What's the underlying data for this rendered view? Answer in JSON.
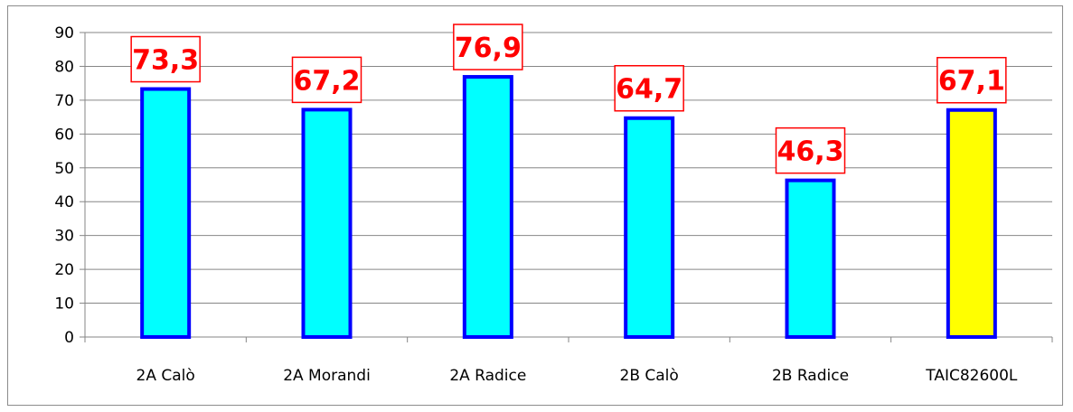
{
  "chart_data": {
    "type": "bar",
    "title": "",
    "xlabel": "",
    "ylabel": "",
    "categories": [
      "2A Calò",
      "2A Morandi",
      "2A Radice",
      "2B Calò",
      "2B Radice",
      "TAIC82600L"
    ],
    "values": [
      73.3,
      67.2,
      76.9,
      64.7,
      46.3,
      67.1
    ],
    "data_labels": [
      "73,3",
      "67,2",
      "76,9",
      "64,7",
      "46,3",
      "67,1"
    ],
    "ylim": [
      0,
      90
    ],
    "yticks": [
      "0",
      "10",
      "20",
      "30",
      "40",
      "50",
      "60",
      "70",
      "80",
      "90"
    ],
    "grid": true,
    "legend": "none",
    "colors": {
      "bar_fill": [
        "#00ffff",
        "#00ffff",
        "#00ffff",
        "#00ffff",
        "#00ffff",
        "#ffff00"
      ],
      "bar_stroke": "#0000ff",
      "label_color": "#ff0000",
      "grid_color": "#868686"
    }
  }
}
